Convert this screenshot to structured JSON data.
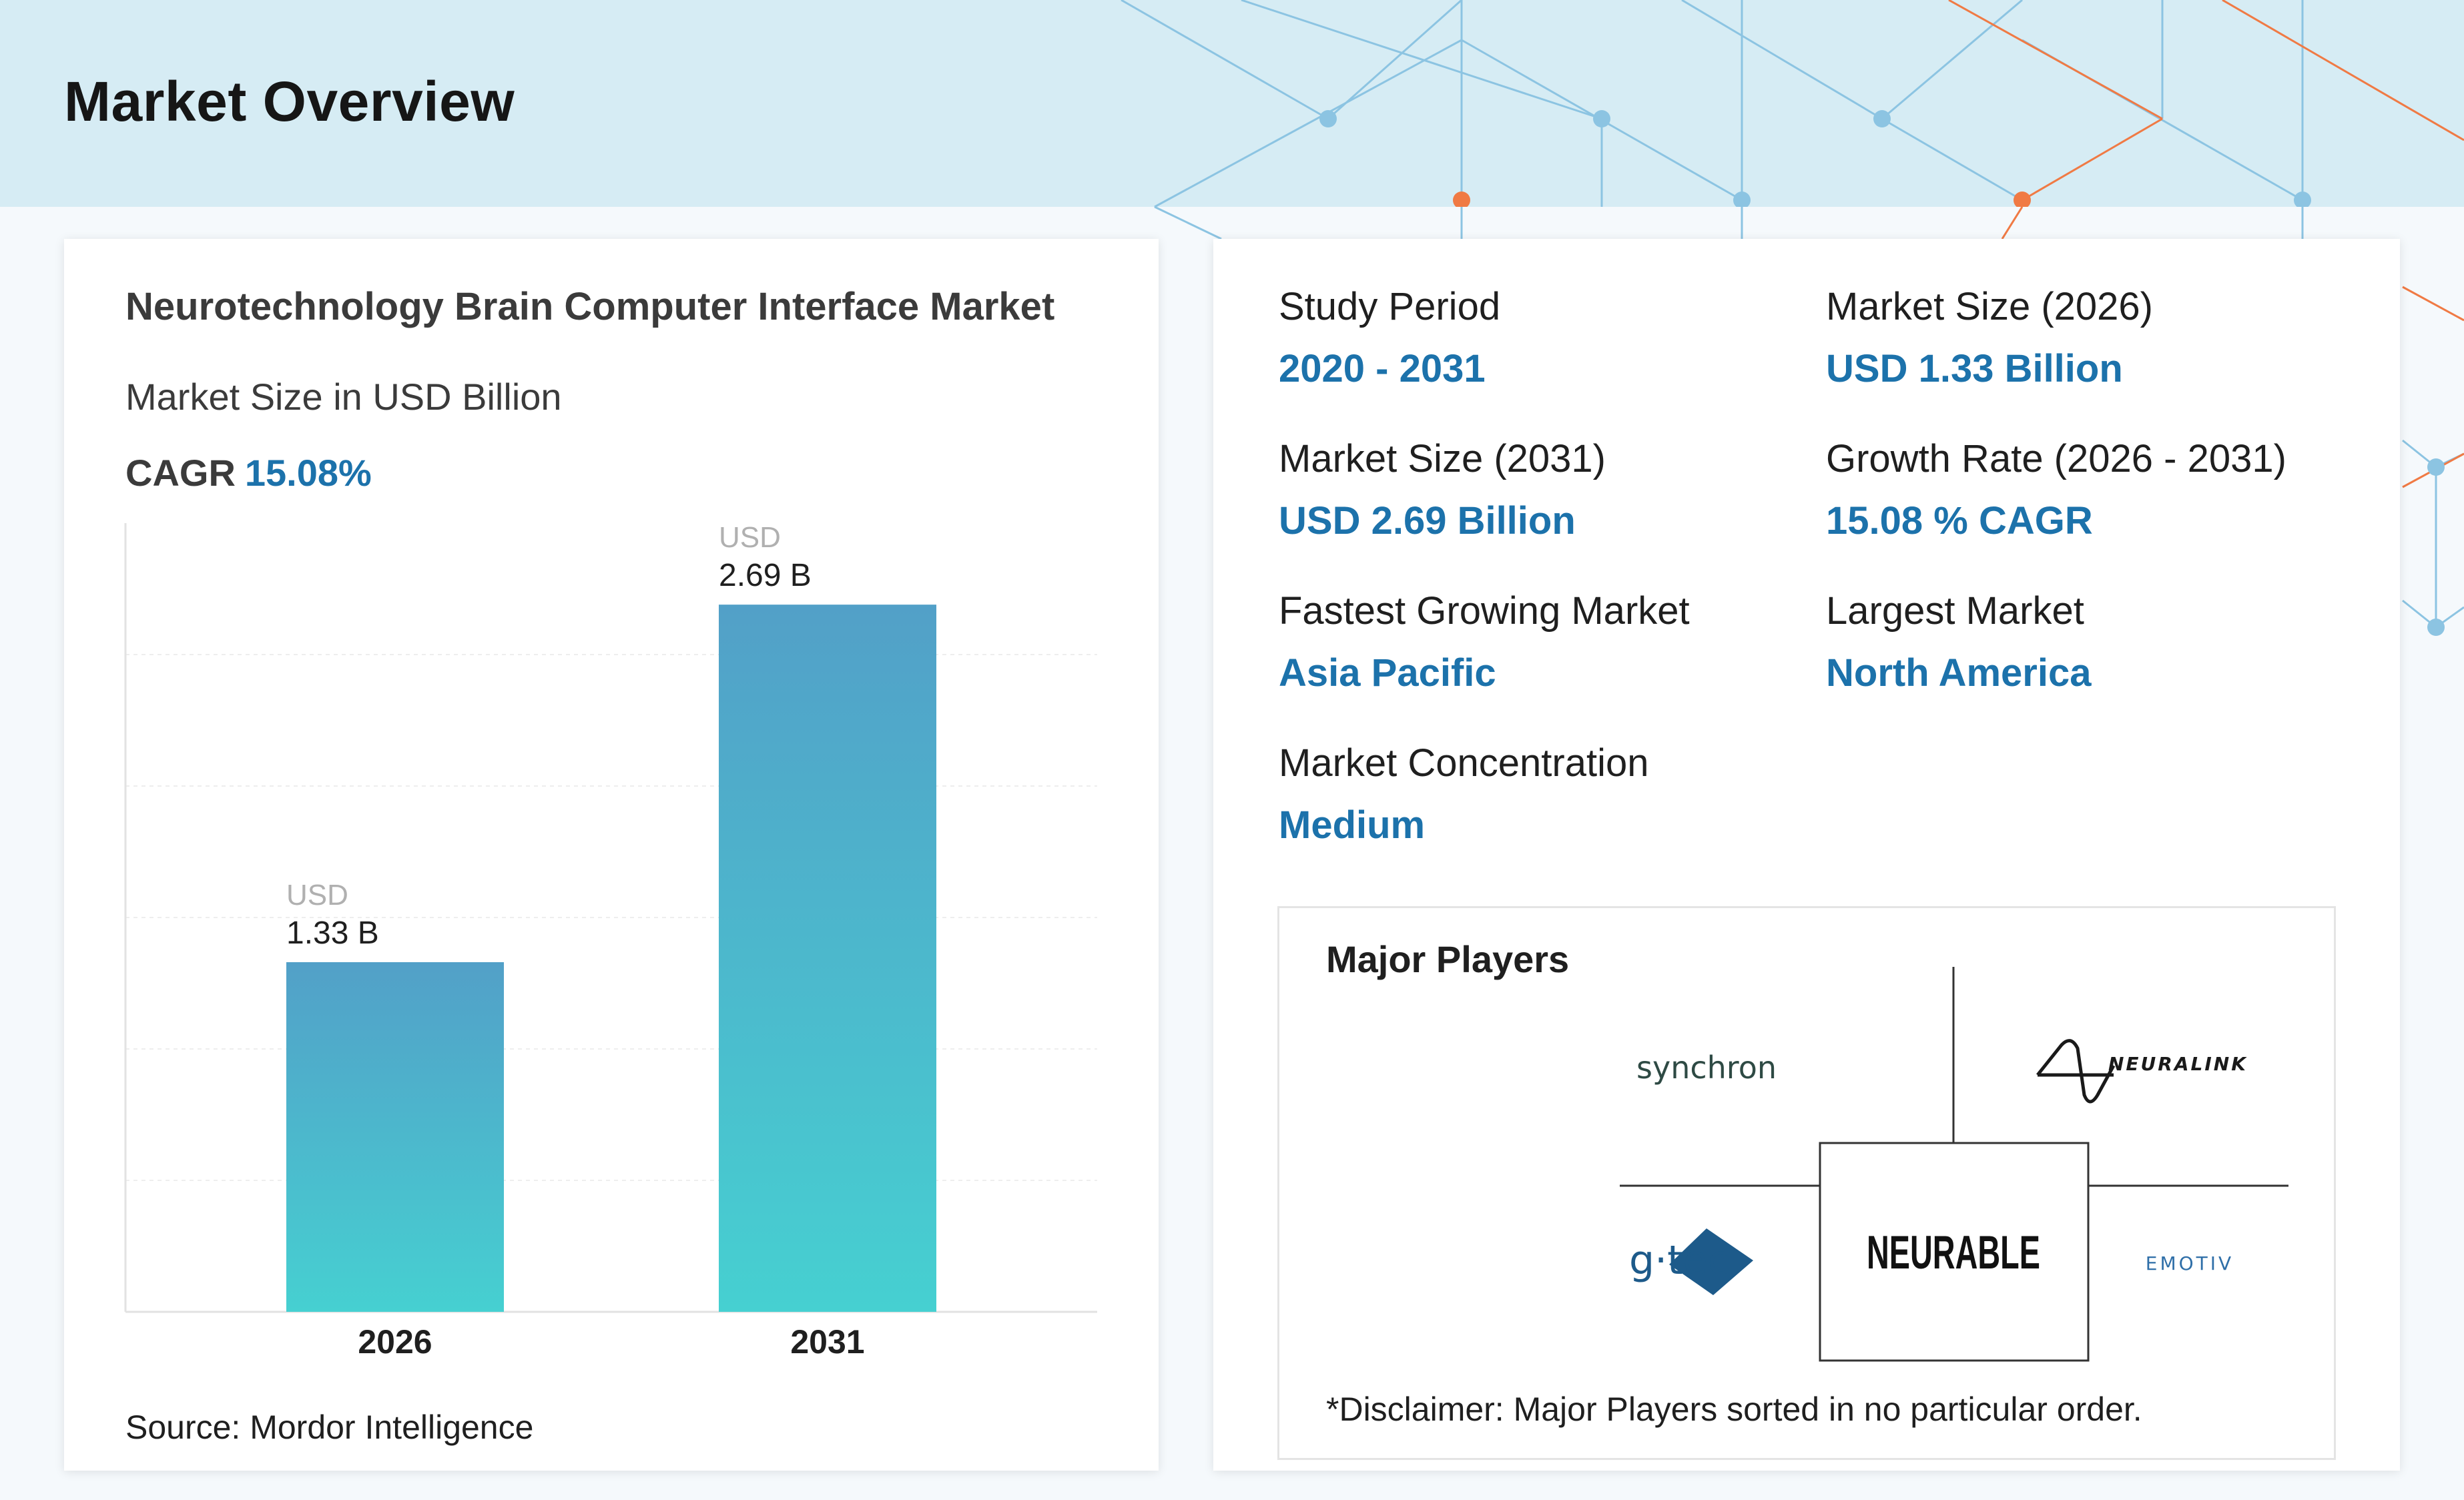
{
  "header": {
    "title": "Market Overview"
  },
  "chart_data": {
    "type": "bar",
    "title": "Neurotechnology Brain Computer Interface Market",
    "subtitle": "Market Size in USD Billion",
    "cagr_label": "CAGR",
    "cagr_value": "15.08%",
    "categories": [
      "2026",
      "2031"
    ],
    "values": [
      1.33,
      2.69
    ],
    "value_prefix": "USD",
    "value_labels": [
      "1.33 B",
      "2.69 B"
    ],
    "ylim": [
      0,
      3.0
    ],
    "grid": true,
    "colors": {
      "bar_top": "#52a0c8",
      "bar_bottom": "#46d0d1"
    }
  },
  "source": "Source: Mordor Intelligence",
  "stats": [
    {
      "label": "Study Period",
      "value": "2020 - 2031"
    },
    {
      "label": "Market Size (2026)",
      "value": "USD 1.33 Billion"
    },
    {
      "label": "Market Size (2031)",
      "value": "USD 2.69 Billion"
    },
    {
      "label": "Growth Rate (2026 - 2031)",
      "value": "15.08 % CAGR"
    },
    {
      "label": "Fastest Growing Market",
      "value": "Asia Pacific"
    },
    {
      "label": "Largest Market",
      "value": "North America"
    },
    {
      "label": "Market Concentration",
      "value": "Medium"
    }
  ],
  "players": {
    "title": "Major Players",
    "logos": [
      "synchron",
      "NEURALINK",
      "g·tec",
      "NEURABLE",
      "EMOTIV"
    ],
    "disclaimer": "*Disclaimer: Major Players sorted in no particular order."
  },
  "colors": {
    "accent": "#1c72ab",
    "header_bg": "#d6ecf4",
    "orange": "#f07a44",
    "blue_net": "#8cc4e2"
  }
}
